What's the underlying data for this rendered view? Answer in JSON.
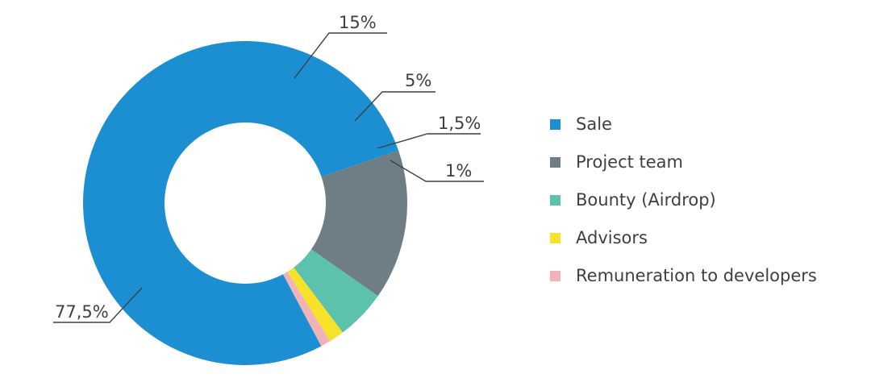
{
  "chart_data": {
    "type": "pie",
    "style": "donut",
    "title": "",
    "categories": [
      "Sale",
      "Project team",
      "Bounty (Airdrop)",
      "Advisors",
      "Remuneration to developers"
    ],
    "values": [
      77.5,
      15,
      5,
      1.5,
      1
    ],
    "value_labels": [
      "77,5%",
      "15%",
      "5%",
      "1,5%",
      "1%"
    ],
    "colors": [
      "#1b8fd1",
      "#6f7d84",
      "#5cc2ad",
      "#f7e22a",
      "#f1b3b8"
    ],
    "legend_position": "right"
  }
}
